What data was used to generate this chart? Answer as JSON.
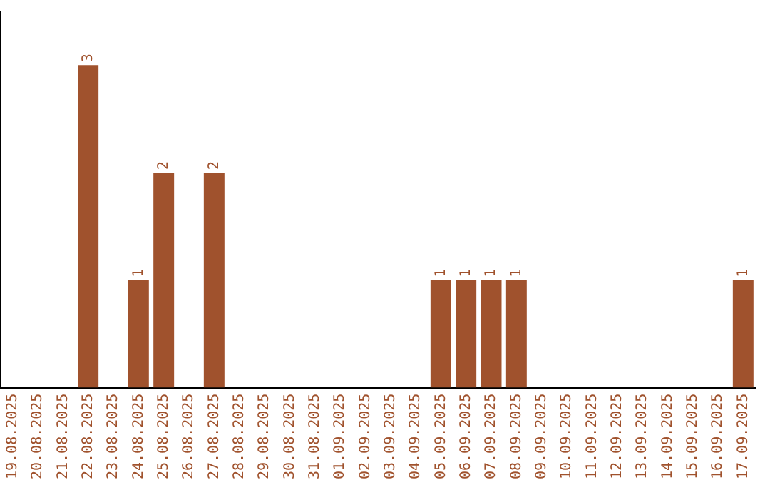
{
  "chart_data": {
    "type": "bar",
    "categories": [
      "19.08.2025",
      "20.08.2025",
      "21.08.2025",
      "22.08.2025",
      "23.08.2025",
      "24.08.2025",
      "25.08.2025",
      "26.08.2025",
      "27.08.2025",
      "28.08.2025",
      "29.08.2025",
      "30.08.2025",
      "31.08.2025",
      "01.09.2025",
      "02.09.2025",
      "03.09.2025",
      "04.09.2025",
      "05.09.2025",
      "06.09.2025",
      "07.09.2025",
      "08.09.2025",
      "09.09.2025",
      "10.09.2025",
      "11.09.2025",
      "12.09.2025",
      "13.09.2025",
      "14.09.2025",
      "15.09.2025",
      "16.09.2025",
      "17.09.2025"
    ],
    "values": [
      0,
      0,
      0,
      3,
      0,
      1,
      2,
      0,
      2,
      0,
      0,
      0,
      0,
      0,
      0,
      0,
      0,
      1,
      1,
      1,
      1,
      0,
      0,
      0,
      0,
      0,
      0,
      0,
      0,
      1
    ],
    "value_labels": [
      null,
      null,
      null,
      "3",
      null,
      "1",
      "2",
      null,
      "2",
      null,
      null,
      null,
      null,
      null,
      null,
      null,
      null,
      "1",
      "1",
      "1",
      "1",
      null,
      null,
      null,
      null,
      null,
      null,
      null,
      null,
      "1"
    ],
    "color": "#a0522d",
    "grid": false,
    "legend": false,
    "tick_labels": "x"
  }
}
